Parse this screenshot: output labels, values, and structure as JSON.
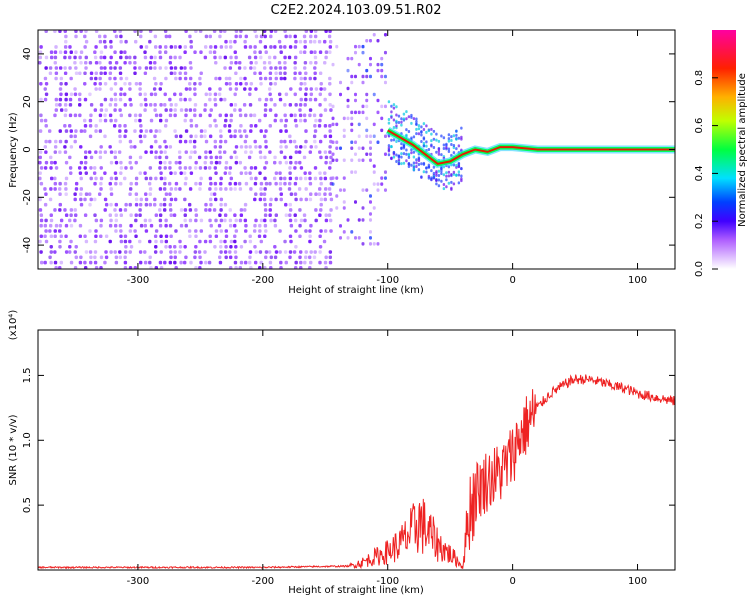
{
  "title": "C2E2.2024.103.09.51.R02",
  "chart_data": [
    {
      "type": "heatmap",
      "xlabel": "Height of straight line (km)",
      "ylabel": "Frequency (Hz)",
      "xlim": [
        -380,
        130
      ],
      "ylim": [
        -50,
        50
      ],
      "xticks": [
        -300,
        -200,
        -100,
        0,
        100
      ],
      "xtick_labels": [
        "-300",
        "-200",
        "-100",
        "0",
        "100"
      ],
      "yticks": [
        -40,
        -20,
        0,
        20,
        40
      ],
      "ytick_labels": [
        "-40",
        "-20",
        "0",
        "20",
        "40"
      ],
      "colorbar": {
        "label": "Normalized spectral amplitude",
        "range": [
          0,
          1
        ],
        "ticks": [
          0.0,
          0.2,
          0.4,
          0.6,
          0.8
        ],
        "tick_labels": [
          "0.0",
          "0.2",
          "0.4",
          "0.6",
          "0.8"
        ],
        "colormap": [
          "#ffffff",
          "#8000ff",
          "#0000ff",
          "#00ffff",
          "#00ff00",
          "#ffff00",
          "#ff8000",
          "#ff0000",
          "#ff00a0"
        ]
      },
      "ridge": {
        "x": [
          -100,
          -90,
          -80,
          -70,
          -60,
          -50,
          -40,
          -30,
          -20,
          -10,
          0,
          20,
          40,
          60,
          80,
          100,
          130
        ],
        "y": [
          8,
          5,
          2,
          -2,
          -6,
          -5,
          -2,
          0,
          -1,
          1,
          1,
          0,
          0,
          0,
          0,
          0,
          0
        ]
      }
    },
    {
      "type": "line",
      "xlabel": "Height of straight line (km)",
      "ylabel": "SNR (10 * v/v)",
      "y_multiplier": "(x10⁴)",
      "xlim": [
        -380,
        130
      ],
      "ylim": [
        0,
        1.85
      ],
      "xticks": [
        -300,
        -200,
        -100,
        0,
        100
      ],
      "xtick_labels": [
        "-300",
        "-200",
        "-100",
        "0",
        "100"
      ],
      "yticks": [
        0.5,
        1.0,
        1.5
      ],
      "ytick_labels": [
        "0.5",
        "1.0",
        "1.5"
      ],
      "series": [
        {
          "color": "#ee2222",
          "x": [
            -380,
            -300,
            -200,
            -130,
            -120,
            -110,
            -100,
            -90,
            -80,
            -75,
            -70,
            -65,
            -60,
            -55,
            -50,
            -45,
            -40,
            -35,
            -30,
            -25,
            -20,
            -15,
            -10,
            -5,
            0,
            5,
            10,
            20,
            30,
            40,
            45,
            50,
            60,
            70,
            80,
            90,
            100,
            110,
            120,
            130
          ],
          "y": [
            0.02,
            0.02,
            0.02,
            0.03,
            0.06,
            0.1,
            0.14,
            0.2,
            0.3,
            0.38,
            0.32,
            0.26,
            0.2,
            0.16,
            0.12,
            0.08,
            0.02,
            0.45,
            0.6,
            0.65,
            0.7,
            0.72,
            0.75,
            0.8,
            0.9,
            1.02,
            1.1,
            1.25,
            1.36,
            1.42,
            1.45,
            1.47,
            1.47,
            1.45,
            1.42,
            1.4,
            1.36,
            1.34,
            1.32,
            1.3
          ]
        }
      ]
    }
  ]
}
